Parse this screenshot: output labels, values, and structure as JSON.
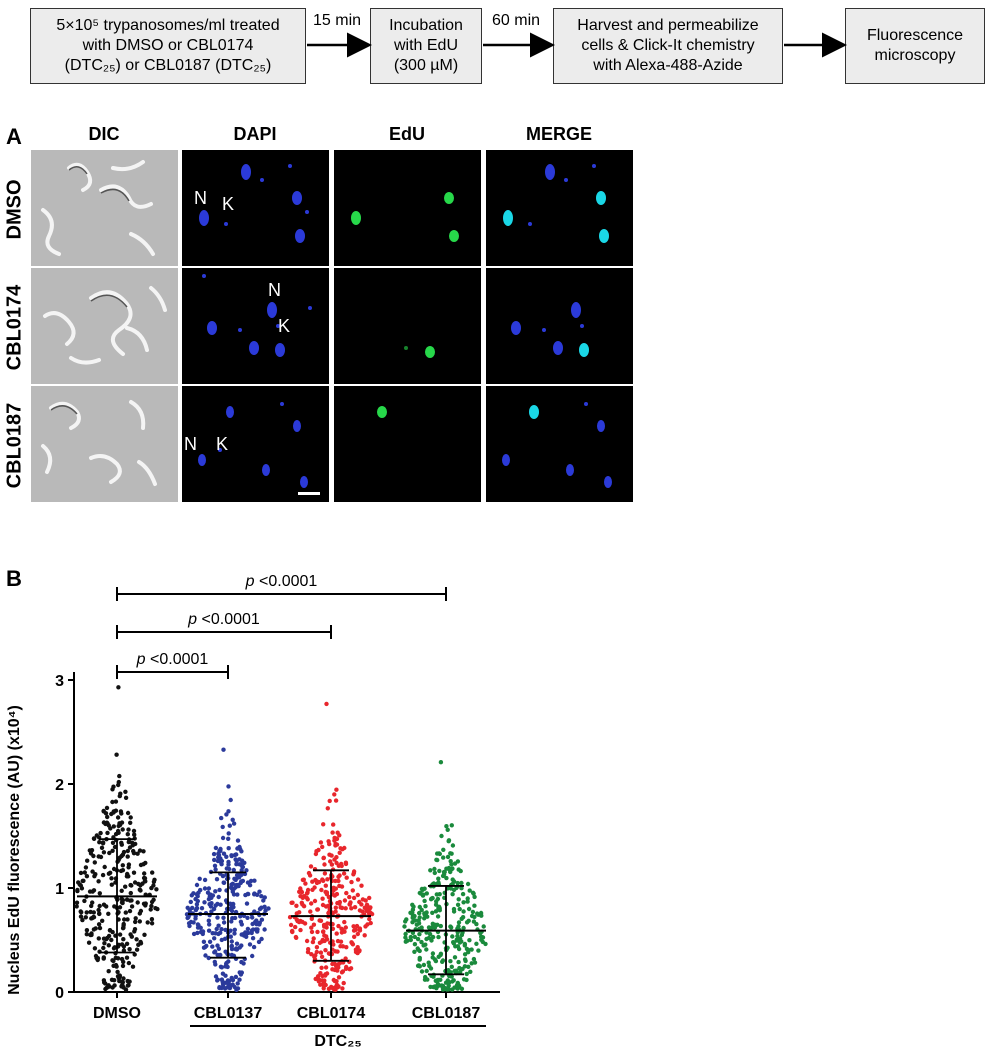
{
  "flow": {
    "box1": [
      "5×10⁵ trypanosomes/ml treated",
      "with DMSO or CBL0174",
      "(DTC₂₅) or CBL0187 (DTC₂₅)"
    ],
    "box2": [
      "Incubation",
      "with EdU",
      "(300 µM)"
    ],
    "box3": [
      "Harvest and permeabilize",
      "cells & Click-It chemistry",
      "with Alexa-488-Azide"
    ],
    "box4": [
      "Fluorescence",
      "microscopy"
    ],
    "arrow1": "15 min",
    "arrow2": "60 min"
  },
  "panelA": {
    "letter": "A",
    "columns": [
      "DIC",
      "DAPI",
      "EdU",
      "MERGE"
    ],
    "rows": [
      "DMSO",
      "CBL0174",
      "CBL0187"
    ],
    "marker_n": "N",
    "marker_k": "K"
  },
  "chart_data": {
    "type": "scatter",
    "panel_letter": "B",
    "ylabel": "Nucleus EdU fluorescence (AU) (x10⁴)",
    "ylim": [
      0,
      3
    ],
    "yticks": [
      0,
      1,
      2,
      3
    ],
    "categories": [
      "DMSO",
      "CBL0137",
      "CBL0174",
      "CBL0187"
    ],
    "group_label": "DTC₂₅",
    "series": [
      {
        "name": "DMSO",
        "color": "#111111",
        "mean": 0.92,
        "sd_low": 0.38,
        "sd_high": 1.47,
        "max": 2.93
      },
      {
        "name": "CBL0137",
        "color": "#2b3a9b",
        "mean": 0.75,
        "sd_low": 0.33,
        "sd_high": 1.15,
        "max": 2.33
      },
      {
        "name": "CBL0174",
        "color": "#e8262c",
        "mean": 0.73,
        "sd_low": 0.3,
        "sd_high": 1.17,
        "max": 2.77
      },
      {
        "name": "CBL0187",
        "color": "#1a8a3c",
        "mean": 0.59,
        "sd_low": 0.17,
        "sd_high": 1.02,
        "max": 2.21
      }
    ],
    "comparisons": [
      {
        "from": "DMSO",
        "to": "CBL0137",
        "p_prefix": "p",
        "p_text": " <0.0001"
      },
      {
        "from": "DMSO",
        "to": "CBL0174",
        "p_prefix": "p",
        "p_text": " <0.0001"
      },
      {
        "from": "DMSO",
        "to": "CBL0187",
        "p_prefix": "p",
        "p_text": " <0.0001"
      }
    ]
  }
}
